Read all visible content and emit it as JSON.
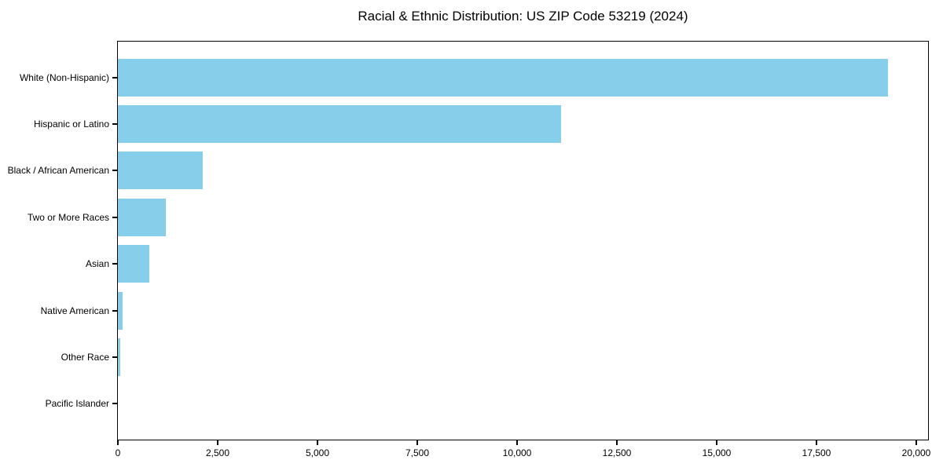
{
  "page": {
    "background": "#ffffff"
  },
  "chart_data": {
    "type": "bar",
    "orientation": "horizontal",
    "title": "Racial & Ethnic Distribution: US ZIP Code 53219 (2024)",
    "categories": [
      "White (Non-Hispanic)",
      "Hispanic or Latino",
      "Black / African American",
      "Two or More Races",
      "Asian",
      "Native American",
      "Other Race",
      "Pacific Islander"
    ],
    "values": [
      19300,
      11100,
      2120,
      1200,
      790,
      120,
      60,
      0
    ],
    "xlabel": "",
    "ylabel": "",
    "xlim": [
      0,
      20300
    ],
    "x_ticks": [
      0,
      2500,
      5000,
      7500,
      10000,
      12500,
      15000,
      17500,
      20000
    ],
    "x_tick_labels": [
      "0",
      "2,500",
      "5,000",
      "7,500",
      "10,000",
      "12,500",
      "15,000",
      "17,500",
      "20,000"
    ],
    "bar_color": "#87CEEB",
    "axis_color": "#000000",
    "text_color": "#000000",
    "grid": false,
    "legend": false
  }
}
